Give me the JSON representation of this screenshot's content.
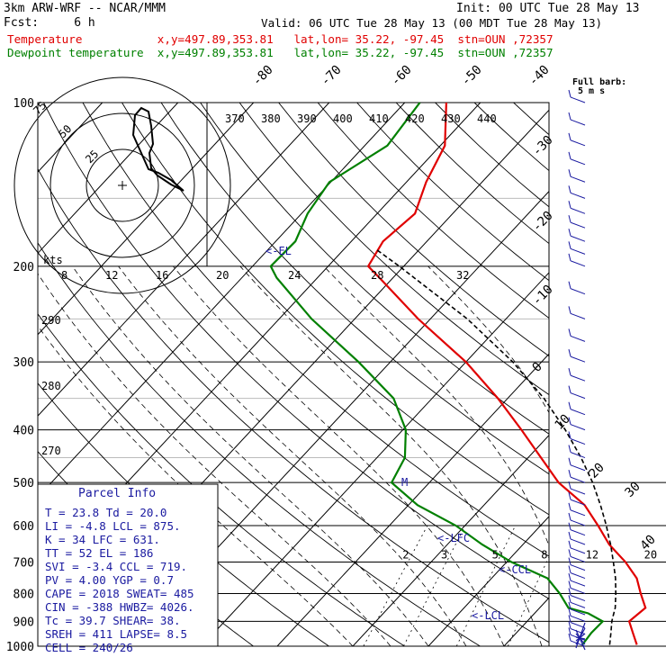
{
  "header": {
    "line1_left": "3km ARW-WRF -- NCAR/MMM",
    "line1_right": "Init: 00 UTC Tue 28 May 13",
    "line2_left": "Fcst:     6 h",
    "line2_right": "Valid: 06 UTC Tue 28 May 13 (00 MDT Tue 28 May 13)",
    "temp_line": "Temperature           x,y=497.89,353.81   lat,lon= 35.22, -97.45  stn=OUN ,72357",
    "dew_line": "Dewpoint temperature  x,y=497.89,353.81   lat,lon= 35.22, -97.45  stn=OUN ,72357",
    "full_barb": "Full barb:",
    "full_barb_units": "5 m s"
  },
  "colors": {
    "temperature": "#e00000",
    "dewpoint": "#008000",
    "parcel": "#000000",
    "annot": "#1a1aa0",
    "hodograph": "#000000"
  },
  "chart_data": {
    "type": "line",
    "subtype": "skew-T log-p sounding",
    "y_axis": {
      "label": "",
      "scale": "log",
      "range_hPa": [
        1000,
        100
      ],
      "ticks": [
        100,
        200,
        300,
        400,
        500,
        600,
        700,
        800,
        900,
        1000
      ]
    },
    "skewed_temperature_ticks": [
      -80,
      -70,
      -60,
      -50,
      -40,
      -30,
      -20,
      -10,
      0,
      10,
      20,
      30,
      40
    ],
    "theta_labels": [
      370,
      380,
      390,
      400,
      410,
      420,
      430,
      440
    ],
    "theta_left_labels": [
      290,
      280,
      270
    ],
    "mixing_ratio_labels": [
      2,
      3,
      5,
      8,
      12,
      20
    ],
    "series": [
      {
        "name": "Temperature",
        "points": [
          [
            994,
            27.4
          ],
          [
            945,
            25.4
          ],
          [
            900,
            23.5
          ],
          [
            850,
            24.0
          ],
          [
            800,
            21.6
          ],
          [
            750,
            19.2
          ],
          [
            700,
            15.7
          ],
          [
            650,
            11.4
          ],
          [
            600,
            7.6
          ],
          [
            550,
            3.3
          ],
          [
            500,
            -2.9
          ],
          [
            450,
            -8.3
          ],
          [
            400,
            -14.3
          ],
          [
            350,
            -21.3
          ],
          [
            300,
            -30.0
          ],
          [
            250,
            -41.6
          ],
          [
            210,
            -51.8
          ],
          [
            200,
            -54.7
          ],
          [
            180,
            -55.8
          ],
          [
            160,
            -55.0
          ],
          [
            140,
            -57.4
          ],
          [
            120,
            -59.4
          ],
          [
            100,
            -64.5
          ]
        ]
      },
      {
        "name": "Dewpoint temperature",
        "points": [
          [
            994,
            20.2
          ],
          [
            945,
            19.9
          ],
          [
            900,
            20.0
          ],
          [
            870,
            17.1
          ],
          [
            850,
            13.8
          ],
          [
            800,
            10.9
          ],
          [
            750,
            7.4
          ],
          [
            700,
            0.6
          ],
          [
            650,
            -5.4
          ],
          [
            600,
            -11.2
          ],
          [
            550,
            -18.8
          ],
          [
            500,
            -25.0
          ],
          [
            450,
            -26.3
          ],
          [
            400,
            -29.6
          ],
          [
            350,
            -35.1
          ],
          [
            300,
            -44.2
          ],
          [
            250,
            -55.7
          ],
          [
            210,
            -65.4
          ],
          [
            200,
            -67.6
          ],
          [
            180,
            -67.4
          ],
          [
            160,
            -69.2
          ],
          [
            140,
            -70.2
          ],
          [
            120,
            -67.0
          ],
          [
            100,
            -68.0
          ]
        ]
      },
      {
        "name": "Parcel",
        "points": [
          [
            994,
            23.8
          ],
          [
            945,
            22.5
          ],
          [
            900,
            21.2
          ],
          [
            875,
            20.6
          ],
          [
            850,
            20.0
          ],
          [
            800,
            18.3
          ],
          [
            750,
            16.4
          ],
          [
            700,
            14.1
          ],
          [
            650,
            11.6
          ],
          [
            631,
            10.5
          ],
          [
            600,
            8.7
          ],
          [
            550,
            5.4
          ],
          [
            500,
            1.6
          ],
          [
            450,
            -3.0
          ],
          [
            400,
            -8.5
          ],
          [
            350,
            -15.2
          ],
          [
            300,
            -23.8
          ],
          [
            250,
            -35.1
          ],
          [
            200,
            -50.6
          ],
          [
            186,
            -55.8
          ]
        ]
      }
    ],
    "level_annotations": [
      "<-EL",
      "<-LFC",
      "<-CCL",
      "<-LCL",
      "M"
    ],
    "hodograph": {
      "rings_kts": [
        25,
        50,
        75
      ],
      "ring_labels": [
        "25",
        "50",
        "75"
      ],
      "axis_labels": [
        "kts",
        "8",
        "12",
        "16",
        "20",
        "24",
        "28",
        "32"
      ]
    },
    "wind_barb_levels_hPa": [
      1000,
      975,
      950,
      925,
      900,
      875,
      850,
      825,
      800,
      775,
      750,
      725,
      700,
      675,
      650,
      625,
      600,
      575,
      550,
      525,
      500,
      475,
      450,
      425,
      400,
      375,
      350,
      325,
      300,
      275,
      250,
      225,
      200,
      190,
      180,
      170,
      160,
      150,
      140,
      130,
      120,
      110,
      100
    ]
  },
  "parcel_info": {
    "title": "Parcel  Info",
    "rows": [
      "T  =    23.8  Td =  20.0",
      "LI =    -4.8  LCL =  875.",
      "K  =      34  LFC =  631.",
      "TT =      52  EL  =   186",
      "SVI =   -3.4  CCL =  719.",
      "PV =    4.00  YGP =   0.7",
      "CAPE =  2018  SWEAT=  485",
      "CIN  =  -388  HWBZ= 4026.",
      "Tc =    39.7  SHEAR=  38.",
      "SREH =   411  LAPSE=  8.5",
      "CELL = 240/26"
    ]
  }
}
